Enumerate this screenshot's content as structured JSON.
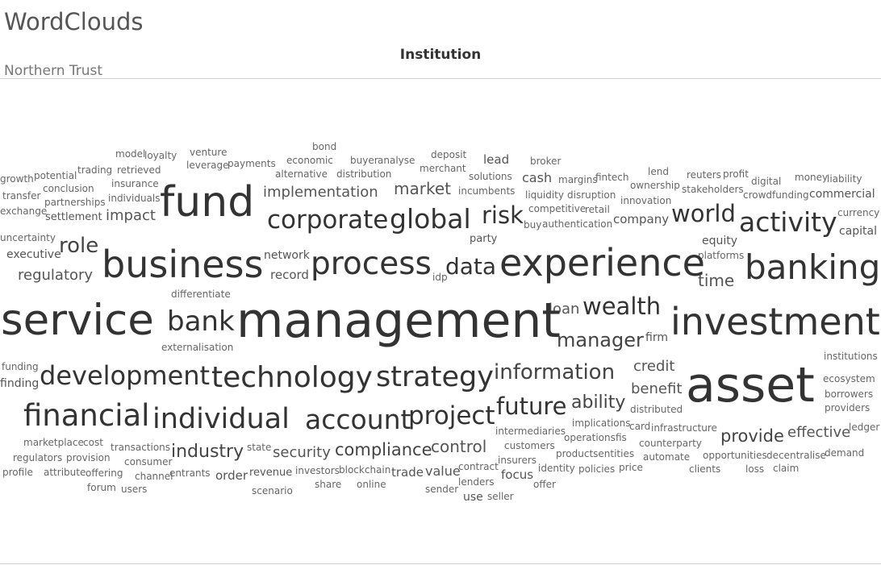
{
  "header": {
    "app_title": "WordClouds",
    "sheet_title": "Institution",
    "filter_value": "Northern Trust"
  },
  "colors": {
    "text_dark": "#333333",
    "text_mid": "#555555",
    "text_light": "#777777",
    "rule": "#cfcfcf"
  },
  "wordcloud": {
    "words": [
      "bond",
      "model",
      "loyalty",
      "venture",
      "deposit",
      "economic",
      "buyer",
      "analyse",
      "lead",
      "broker",
      "leverage",
      "payments",
      "merchant",
      "growth",
      "potential",
      "trading",
      "retrieved",
      "alternative",
      "distribution",
      "solutions",
      "reuters",
      "profit",
      "lend",
      "margins",
      "fintech",
      "digital",
      "money",
      "liability",
      "insurance",
      "cash",
      "ownership",
      "conclusion",
      "transfer",
      "implementation",
      "market",
      "incumbents",
      "stakeholders",
      "crowdfunding",
      "commercial",
      "individuals",
      "partnerships",
      "fund",
      "liquidity",
      "disruption",
      "innovation",
      "exchange",
      "settlement",
      "impact",
      "competitive",
      "retail",
      "currency",
      "corporate",
      "global",
      "risk",
      "world",
      "company",
      "activity",
      "buy",
      "authentication",
      "capital",
      "uncertainty",
      "party",
      "equity",
      "role",
      "executive",
      "network",
      "platforms",
      "business",
      "process",
      "data",
      "experience",
      "banking",
      "regulatory",
      "record",
      "idp",
      "time",
      "differentiate",
      "loan",
      "wealth",
      "service",
      "bank",
      "management",
      "investment",
      "externalisation",
      "manager",
      "firm",
      "institutions",
      "credit",
      "funding",
      "finding",
      "development",
      "technology",
      "strategy",
      "information",
      "ecosystem",
      "benefit",
      "asset",
      "borrowers",
      "ability",
      "distributed",
      "providers",
      "financial",
      "individual",
      "future",
      "account",
      "project",
      "implications",
      "card",
      "infrastructure",
      "ledger",
      "effective",
      "intermediaries",
      "provide",
      "operations",
      "fis",
      "marketplace",
      "cost",
      "counterparty",
      "transactions",
      "customers",
      "demand",
      "control",
      "decentralise",
      "regulators",
      "provision",
      "industry",
      "state",
      "security",
      "compliance",
      "productsentities",
      "opportunities",
      "consumer",
      "automate",
      "insurers",
      "profile",
      "attribute",
      "offering",
      "entrants",
      "revenue",
      "investors",
      "blockchain",
      "trade",
      "value",
      "contract",
      "identity",
      "policies",
      "price",
      "focus",
      "clients",
      "loss",
      "claim",
      "channel",
      "order",
      "forum",
      "users",
      "share",
      "online",
      "lenders",
      "offer",
      "scenario",
      "sender",
      "use",
      "seller"
    ]
  }
}
